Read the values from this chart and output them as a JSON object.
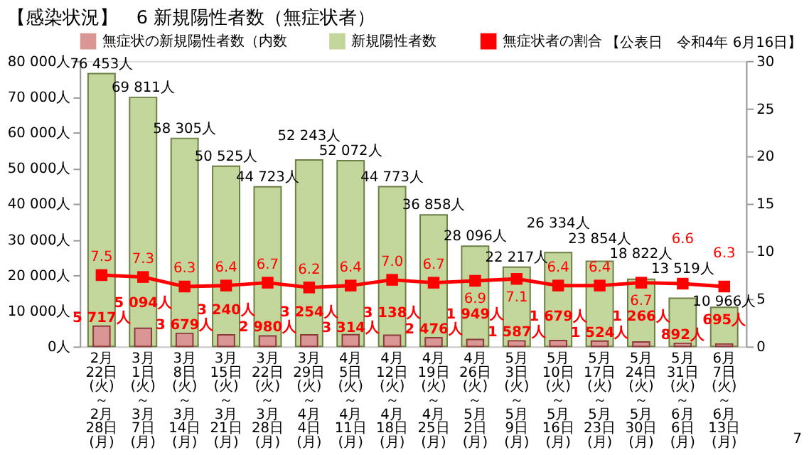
{
  "chart_data": {
    "type": "bar",
    "title": "【感染状況】　6 新規陽性者数（無症状者）",
    "annotations": [
      "【公表日　令和4年 6月16日】",
      "7"
    ],
    "categories": [
      "2月22日(火)～2月28日(月)",
      "3月1日(火)～3月7日(月)",
      "3月8日(火)～3月14日(月)",
      "3月15日(火)～3月21日(月)",
      "3月22日(火)～3月28日(月)",
      "3月29日(火)～4月4日(月)",
      "4月5日(火)～4月11日(月)",
      "4月12日(火)～4月18日(月)",
      "4月19日(火)～4月25日(月)",
      "4月26日(火)～5月2日(月)",
      "5月3日(火)～5月9日(月)",
      "5月10日(火)～5月16日(月)",
      "5月17日(火)～5月23日(月)",
      "5月24日(火)～5月30日(月)",
      "5月31日(火)～6月6日(月)",
      "6月7日(火)～6月13日(月)"
    ],
    "series": [
      {
        "name": "無症状の新規陽性者数（内数",
        "color": "#d99694",
        "values": [
          5717,
          5094,
          3679,
          3240,
          2980,
          3254,
          3314,
          3138,
          2476,
          1949,
          1587,
          1679,
          1524,
          1266,
          892,
          695
        ],
        "value_labels": [
          "5 717人",
          "5 094人",
          "3 679人",
          "3 240人",
          "2 980人",
          "3 254人",
          "3 314人",
          "3 138人",
          "2 476人",
          "1 949人",
          "1 587人",
          "1 679人",
          "1 524人",
          "1 266人",
          "892人",
          "695人"
        ]
      },
      {
        "name": "新規陽性者数",
        "color": "#c3d69b",
        "values": [
          76453,
          69811,
          58305,
          50525,
          44723,
          52243,
          52072,
          44773,
          36858,
          28096,
          22217,
          26334,
          23854,
          18822,
          13519,
          10966
        ],
        "value_labels": [
          "76 453人",
          "69 811人",
          "58 305人",
          "50 525人",
          "44 723人",
          "52 243人",
          "52 072人",
          "44 773人",
          "36 858人",
          "28 096人",
          "22 217人",
          "26 334人",
          "23 854人",
          "18 822人",
          "13 519人",
          "10 966人"
        ]
      },
      {
        "name": "無症状者の割合",
        "type": "line",
        "axis": "y2",
        "color": "#ff0000",
        "values": [
          7.5,
          7.3,
          6.3,
          6.4,
          6.7,
          6.2,
          6.4,
          7.0,
          6.7,
          6.9,
          7.1,
          6.4,
          6.4,
          6.7,
          6.6,
          6.3
        ],
        "value_labels": [
          "7.5",
          "7.3",
          "6.3",
          "6.4",
          "6.7",
          "6.2",
          "6.4",
          "7.0",
          "6.7",
          "6.9",
          "7.1",
          "6.4",
          "6.4",
          "6.7",
          "6.6",
          "6.3"
        ]
      }
    ],
    "ylim": [
      0,
      80000
    ],
    "yticks": [
      {
        "value": 0,
        "label": "0人"
      },
      {
        "value": 10000,
        "label": "10 000人"
      },
      {
        "value": 20000,
        "label": "20 000人"
      },
      {
        "value": 30000,
        "label": "30 000人"
      },
      {
        "value": 40000,
        "label": "40 000人"
      },
      {
        "value": 50000,
        "label": "50 000人"
      },
      {
        "value": 60000,
        "label": "60 000人"
      },
      {
        "value": 70000,
        "label": "70 000人"
      },
      {
        "value": 80000,
        "label": "80 000人"
      }
    ],
    "y2lim": [
      0,
      30
    ],
    "y2ticks": [
      0,
      5,
      10,
      15,
      20,
      25,
      30
    ],
    "grid": false,
    "legend": "top",
    "marker": "square",
    "line_style": "solid"
  }
}
